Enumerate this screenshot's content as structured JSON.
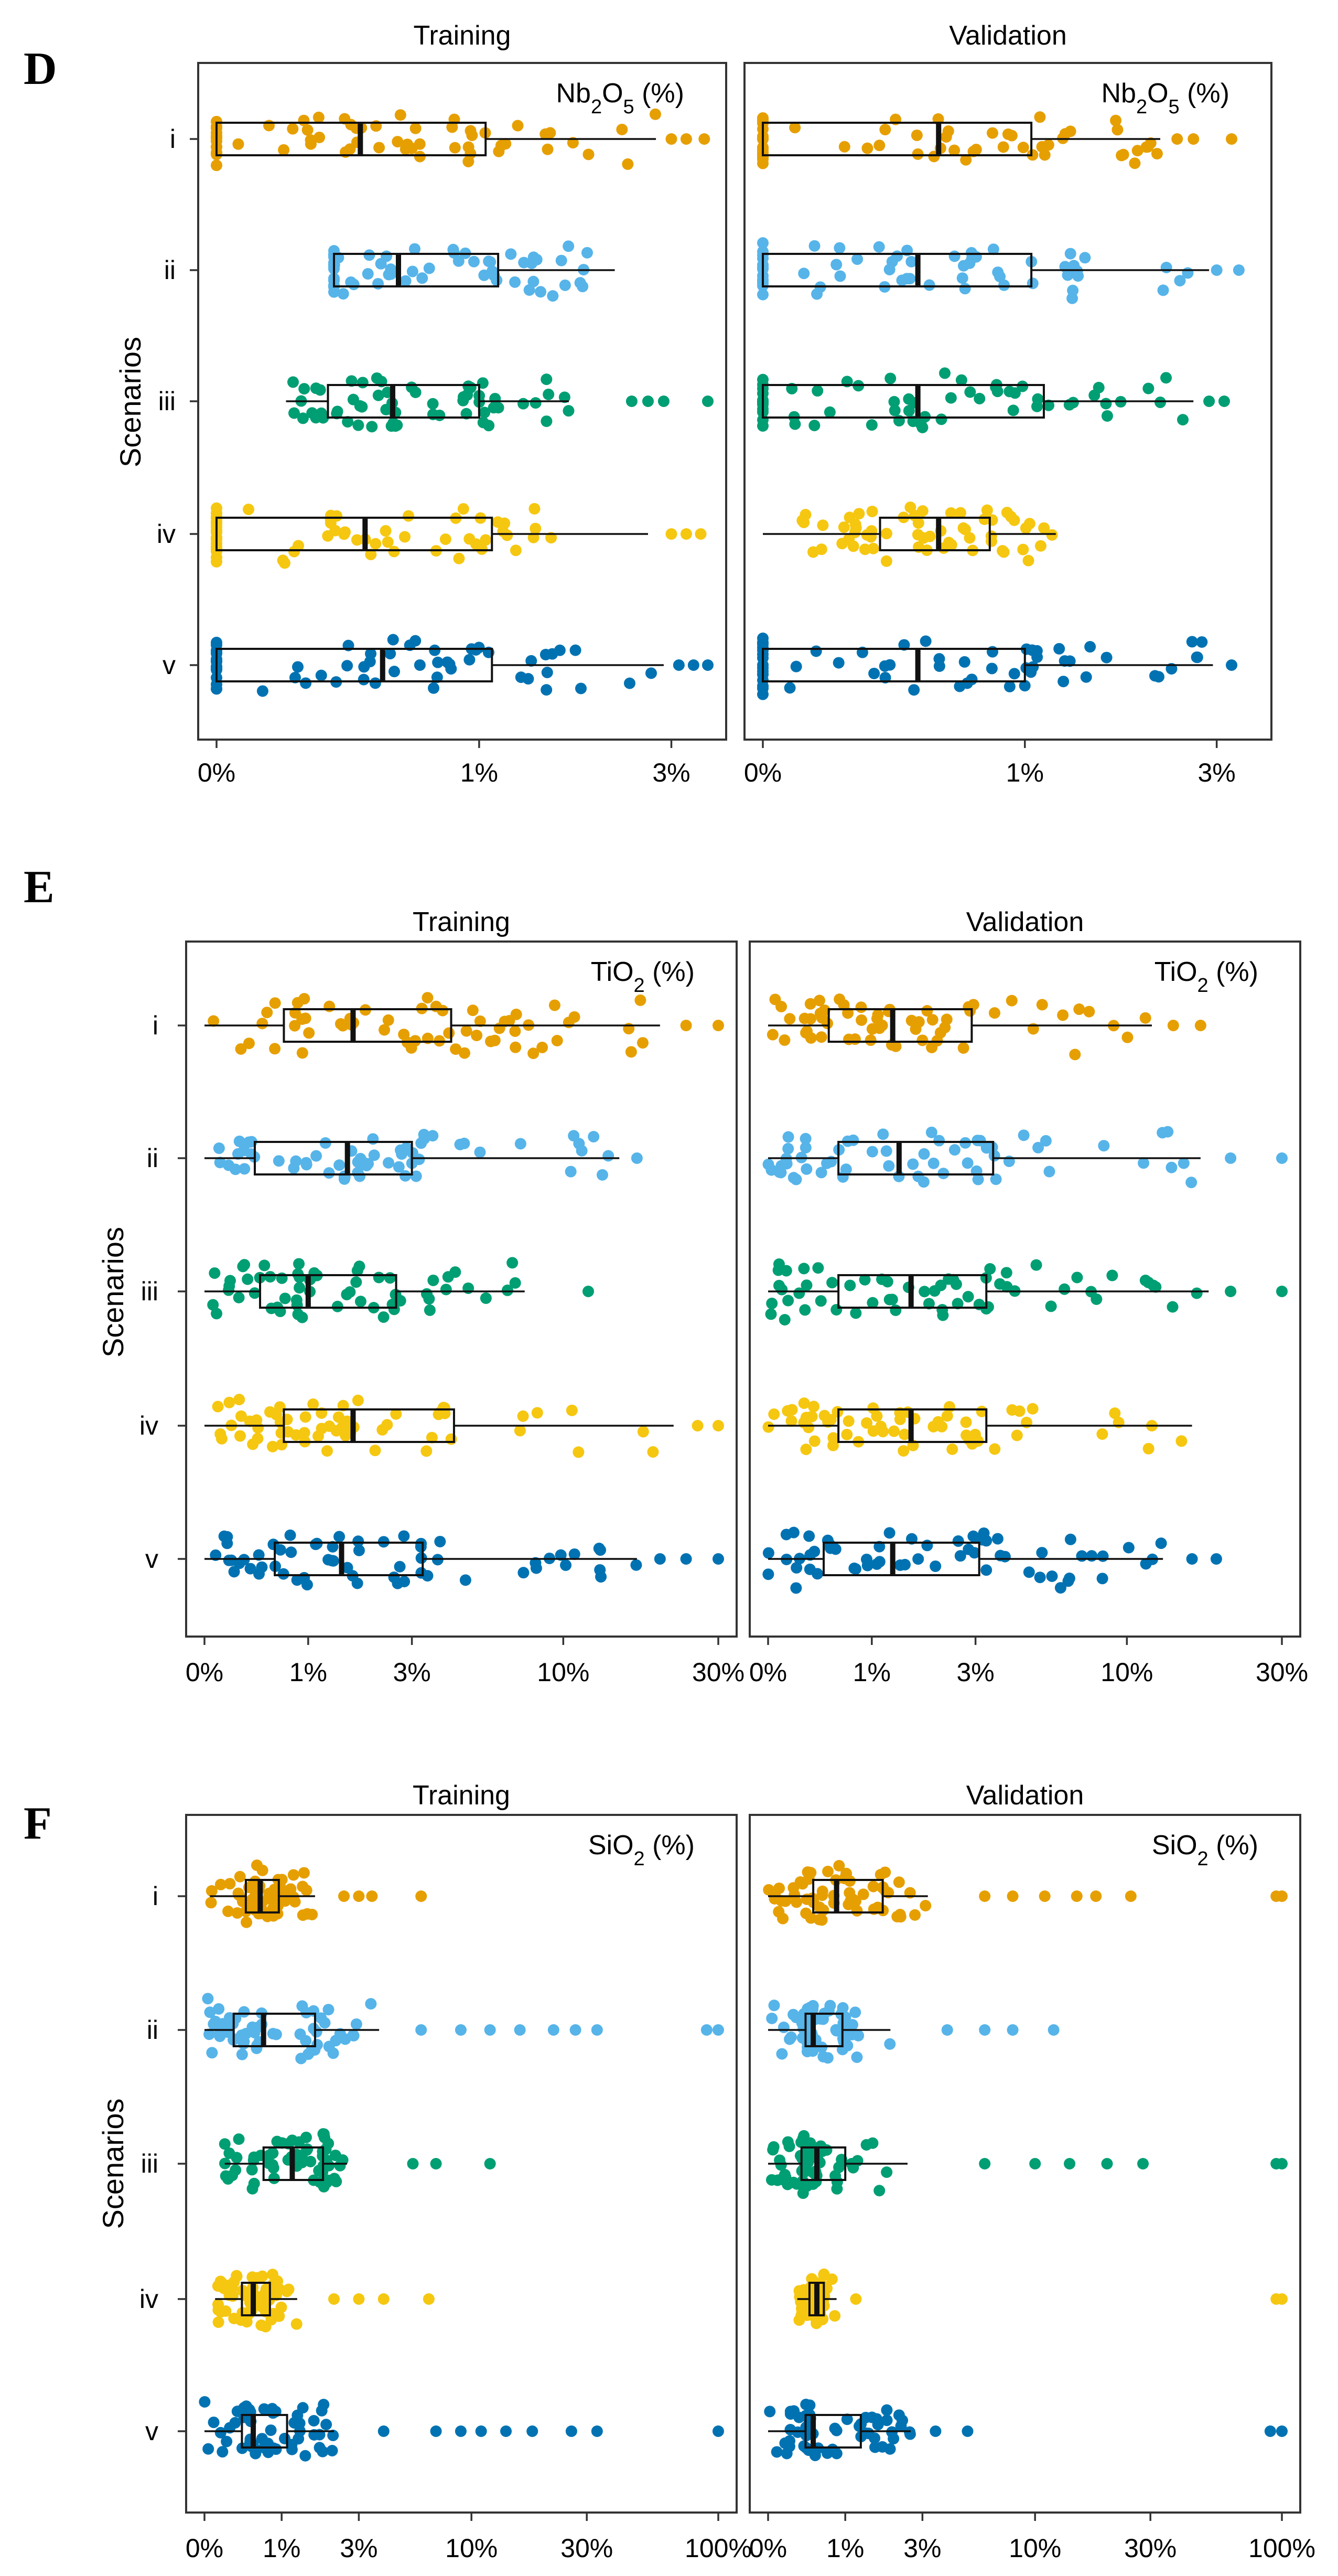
{
  "figure_colors": {
    "i": "#E69F00",
    "ii": "#56B4E9",
    "iii": "#009E73",
    "iv": "#F5C710",
    "v": "#0072B2"
  },
  "chart_data": [
    {
      "panel": "D",
      "type": "box",
      "variable": "Nb2O5 (%)",
      "variable_main": "Nb",
      "variable_sub1": "2",
      "variable_mid": "O",
      "variable_sub2": "5",
      "variable_unit": " (%)",
      "ylabel": "Scenarios",
      "scale": "sqrt",
      "xlim": [
        0,
        3.5
      ],
      "x_ticks": [
        0,
        1,
        3
      ],
      "x_tick_labels": [
        "0%",
        "1%",
        "3%"
      ],
      "facets": [
        {
          "title": "Training",
          "scenarios": [
            {
              "name": "i",
              "q1": 0,
              "median": 0.3,
              "q3": 1.05,
              "whisker_low": 0,
              "whisker_high": 2.8,
              "outliers": [
                3.0,
                3.2,
                3.45
              ]
            },
            {
              "name": "ii",
              "q1": 0.2,
              "median": 0.48,
              "q3": 1.15,
              "whisker_low": 0.2,
              "whisker_high": 2.3,
              "outliers": []
            },
            {
              "name": "iii",
              "q1": 0.18,
              "median": 0.45,
              "q3": 1.0,
              "whisker_low": 0.07,
              "whisker_high": 1.8,
              "outliers": [
                2.5,
                2.7,
                2.9,
                3.5
              ]
            },
            {
              "name": "iv",
              "q1": 0,
              "median": 0.32,
              "q3": 1.1,
              "whisker_low": 0,
              "whisker_high": 2.7,
              "outliers": [
                3.0,
                3.2,
                3.4
              ]
            },
            {
              "name": "v",
              "q1": 0,
              "median": 0.4,
              "q3": 1.1,
              "whisker_low": 0,
              "whisker_high": 2.9,
              "outliers": [
                3.1,
                3.3,
                3.5
              ]
            }
          ]
        },
        {
          "title": "Validation",
          "scenarios": [
            {
              "name": "i",
              "q1": 0,
              "median": 0.45,
              "q3": 1.05,
              "whisker_low": 0,
              "whisker_high": 2.3,
              "outliers": [
                2.5,
                2.7,
                3.2
              ]
            },
            {
              "name": "ii",
              "q1": 0,
              "median": 0.35,
              "q3": 1.05,
              "whisker_low": 0,
              "whisker_high": 2.9,
              "outliers": [
                3.0,
                3.3
              ]
            },
            {
              "name": "iii",
              "q1": 0,
              "median": 0.35,
              "q3": 1.15,
              "whisker_low": 0,
              "whisker_high": 2.7,
              "outliers": [
                2.9,
                3.1
              ]
            },
            {
              "name": "iv",
              "q1": 0.2,
              "median": 0.45,
              "q3": 0.75,
              "whisker_low": 0,
              "whisker_high": 1.25,
              "outliers": []
            },
            {
              "name": "v",
              "q1": 0,
              "median": 0.35,
              "q3": 1.0,
              "whisker_low": 0,
              "whisker_high": 2.95,
              "outliers": [
                3.2
              ]
            }
          ]
        }
      ]
    },
    {
      "panel": "E",
      "type": "box",
      "variable": "TiO2 (%)",
      "variable_main": "TiO",
      "variable_sub1": "2",
      "variable_unit": " (%)",
      "ylabel": "Scenarios",
      "scale": "log1p",
      "xlim": [
        0,
        30
      ],
      "x_ticks": [
        0,
        1,
        3,
        10,
        30
      ],
      "x_tick_labels": [
        "0%",
        "1%",
        "3%",
        "10%",
        "30%"
      ],
      "facets": [
        {
          "title": "Training",
          "scenarios": [
            {
              "name": "i",
              "q1": 0.7,
              "median": 1.7,
              "q3": 4.2,
              "whisker_low": 0,
              "whisker_high": 20,
              "outliers": [
                24,
                30
              ]
            },
            {
              "name": "ii",
              "q1": 0.4,
              "median": 1.6,
              "q3": 3.0,
              "whisker_low": 0,
              "whisker_high": 15,
              "outliers": [
                17
              ]
            },
            {
              "name": "iii",
              "q1": 0.45,
              "median": 1.0,
              "q3": 2.6,
              "whisker_low": 0,
              "whisker_high": 7.5,
              "outliers": [
                12
              ]
            },
            {
              "name": "iv",
              "q1": 0.7,
              "median": 1.7,
              "q3": 4.3,
              "whisker_low": 0,
              "whisker_high": 22,
              "outliers": [
                26,
                30
              ]
            },
            {
              "name": "v",
              "q1": 0.6,
              "median": 1.5,
              "q3": 3.3,
              "whisker_low": 0,
              "whisker_high": 17,
              "outliers": [
                20,
                24,
                30
              ]
            }
          ]
        },
        {
          "title": "Validation",
          "scenarios": [
            {
              "name": "i",
              "q1": 0.5,
              "median": 1.3,
              "q3": 2.9,
              "whisker_low": 0,
              "whisker_high": 12,
              "outliers": [
                14,
                17
              ]
            },
            {
              "name": "ii",
              "q1": 0.6,
              "median": 1.4,
              "q3": 3.5,
              "whisker_low": 0,
              "whisker_high": 17,
              "outliers": [
                21,
                30
              ]
            },
            {
              "name": "iii",
              "q1": 0.6,
              "median": 1.6,
              "q3": 3.3,
              "whisker_low": 0,
              "whisker_high": 18,
              "outliers": [
                21,
                30
              ]
            },
            {
              "name": "iv",
              "q1": 0.6,
              "median": 1.6,
              "q3": 3.3,
              "whisker_low": 0,
              "whisker_high": 16,
              "outliers": [
                12
              ]
            },
            {
              "name": "v",
              "q1": 0.45,
              "median": 1.3,
              "q3": 3.1,
              "whisker_low": 0,
              "whisker_high": 13,
              "outliers": [
                16,
                19
              ]
            }
          ]
        }
      ]
    },
    {
      "panel": "F",
      "type": "box",
      "variable": "SiO2 (%)",
      "variable_main": "SiO",
      "variable_sub1": "2",
      "variable_unit": " (%)",
      "ylabel": "Scenarios",
      "scale": "log1p",
      "xlim": [
        0,
        100
      ],
      "x_ticks": [
        0,
        1,
        3,
        10,
        30,
        100
      ],
      "x_tick_labels": [
        "0%",
        "1%",
        "3%",
        "10%",
        "30%",
        "100%"
      ],
      "facets": [
        {
          "title": "Training",
          "scenarios": [
            {
              "name": "i",
              "q1": 0.45,
              "median": 0.65,
              "q3": 0.95,
              "whisker_low": 0.05,
              "whisker_high": 1.7,
              "outliers": [
                2.5,
                3.0,
                3.5,
                6.0
              ]
            },
            {
              "name": "ii",
              "q1": 0.3,
              "median": 0.7,
              "q3": 1.7,
              "whisker_low": 0,
              "whisker_high": 3.8,
              "outliers": [
                6,
                9,
                12,
                16,
                22,
                27,
                33,
                90,
                100
              ]
            },
            {
              "name": "iii",
              "q1": 0.7,
              "median": 1.2,
              "q3": 1.9,
              "whisker_low": 0.2,
              "whisker_high": 2.6,
              "outliers": [
                5.5,
                7.0,
                12.0
              ]
            },
            {
              "name": "iv",
              "q1": 0.4,
              "median": 0.55,
              "q3": 0.8,
              "whisker_low": 0.1,
              "whisker_high": 1.3,
              "outliers": [
                2.2,
                3.0,
                4.0,
                6.5
              ]
            },
            {
              "name": "v",
              "q1": 0.4,
              "median": 0.55,
              "q3": 1.1,
              "whisker_low": 0,
              "whisker_high": 2.2,
              "outliers": [
                4,
                7,
                9,
                11,
                14,
                18,
                26,
                33,
                100
              ]
            }
          ]
        },
        {
          "title": "Validation",
          "scenarios": [
            {
              "name": "i",
              "q1": 0.5,
              "median": 0.85,
              "q3": 1.8,
              "whisker_low": 0,
              "whisker_high": 3.2,
              "outliers": [
                6,
                8,
                11,
                15,
                18,
                25,
                95,
                100
              ]
            },
            {
              "name": "ii",
              "q1": 0.4,
              "median": 0.5,
              "q3": 0.95,
              "whisker_low": 0,
              "whisker_high": 2.0,
              "outliers": [
                4,
                6,
                8,
                12
              ]
            },
            {
              "name": "iii",
              "q1": 0.35,
              "median": 0.55,
              "q3": 1.0,
              "whisker_low": 0,
              "whisker_high": 2.5,
              "outliers": [
                6,
                10,
                14,
                20,
                28,
                95,
                100
              ]
            },
            {
              "name": "iv",
              "q1": 0.45,
              "median": 0.55,
              "q3": 0.65,
              "whisker_low": 0.3,
              "whisker_high": 0.85,
              "outliers": [
                1.2,
                95,
                100
              ]
            },
            {
              "name": "v",
              "q1": 0.4,
              "median": 0.5,
              "q3": 1.3,
              "whisker_low": 0,
              "whisker_high": 2.6,
              "outliers": [
                3.5,
                5.0,
                90,
                100
              ]
            }
          ]
        }
      ]
    }
  ]
}
